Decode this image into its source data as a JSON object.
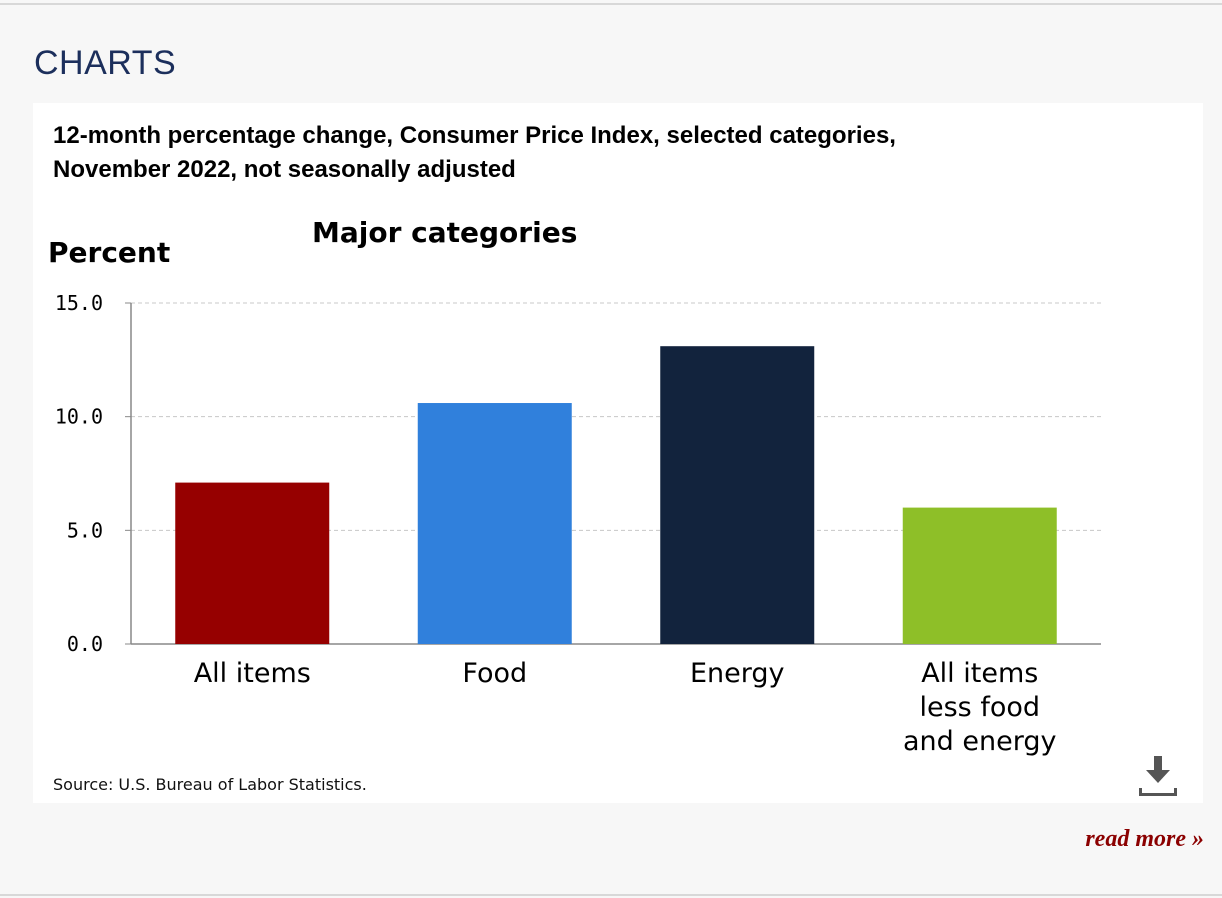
{
  "page": {
    "section_title": "CHARTS",
    "read_more_label": "read more »"
  },
  "chart_panel": {
    "title_line1": "12-month percentage change, Consumer Price Index, selected categories,",
    "title_line2": "November 2022, not seasonally adjusted",
    "source": "Source: U.S. Bureau of Labor Statistics.",
    "download_icon": "download-icon"
  },
  "chart_data": {
    "type": "bar",
    "subtitle": "Major categories",
    "ylabel": "Percent",
    "xlabel": "",
    "ylim": [
      0,
      15
    ],
    "yticks": [
      0,
      5,
      10,
      15
    ],
    "ytick_labels": [
      "0.0",
      "5.0",
      "10.0",
      "15.0"
    ],
    "grid": true,
    "categories": [
      [
        "All items"
      ],
      [
        "Food"
      ],
      [
        "Energy"
      ],
      [
        "All items",
        "less food",
        "and energy"
      ]
    ],
    "values": [
      7.1,
      10.6,
      13.1,
      6.0
    ],
    "colors": [
      "#960000",
      "#3080dc",
      "#12233d",
      "#8ebf28"
    ]
  },
  "colors": {
    "accent": "#1c2f5c",
    "link": "#8b0000"
  }
}
